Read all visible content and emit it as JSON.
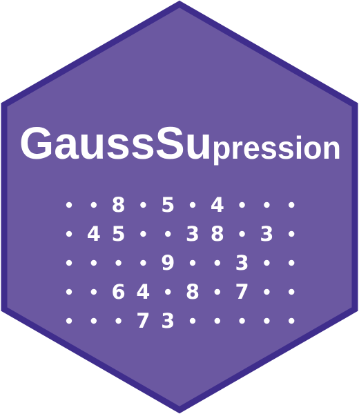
{
  "title_parts": [
    {
      "text": "Gauss",
      "size": "large"
    },
    {
      "text": "Su",
      "size": "large"
    },
    {
      "text": "pression",
      "size": "small"
    }
  ],
  "colors": {
    "hex_fill": "#6b58a1",
    "hex_border": "#3f2d8c",
    "text": "#ffffff"
  },
  "sudoku_rows": [
    [
      null,
      null,
      "8",
      null,
      "5",
      null,
      "4",
      null,
      null,
      null
    ],
    [
      null,
      "4",
      "5",
      null,
      null,
      "3",
      "8",
      null,
      "3",
      null
    ],
    [
      null,
      null,
      null,
      null,
      "9",
      null,
      null,
      "3",
      null,
      null
    ],
    [
      null,
      null,
      "6",
      "4",
      null,
      "8",
      null,
      "7",
      null,
      null
    ],
    [
      null,
      null,
      null,
      "7",
      "3",
      null,
      null,
      null,
      null,
      null
    ]
  ]
}
